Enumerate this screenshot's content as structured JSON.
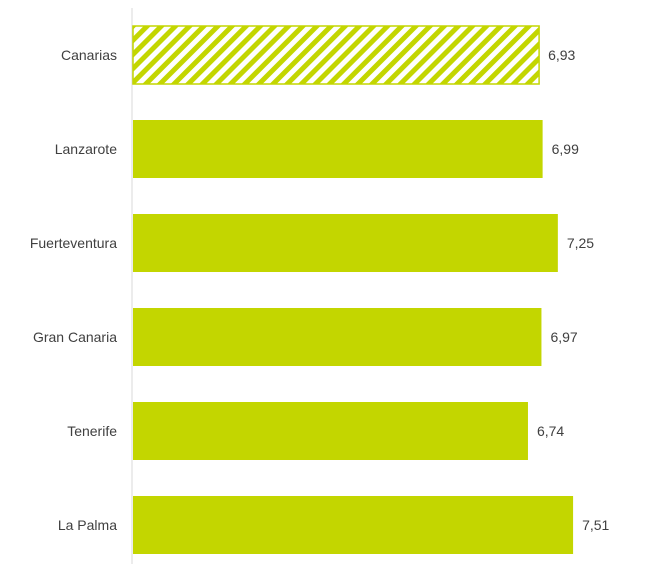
{
  "chart_data": {
    "type": "bar",
    "orientation": "horizontal",
    "categories": [
      "Canarias",
      "Lanzarote",
      "Fuerteventura",
      "Gran Canaria",
      "Tenerife",
      "La Palma"
    ],
    "values": [
      6.93,
      6.99,
      7.25,
      6.97,
      6.74,
      7.51
    ],
    "value_labels": [
      "6,93",
      "6,99",
      "7,25",
      "6,97",
      "6,74",
      "7,51"
    ],
    "highlighted_category": "Canarias",
    "highlight_style": "diagonal-hatch",
    "bar_color": "#c3d600",
    "title": "",
    "xlabel": "",
    "ylabel": "",
    "grid": false,
    "legend": "none"
  }
}
